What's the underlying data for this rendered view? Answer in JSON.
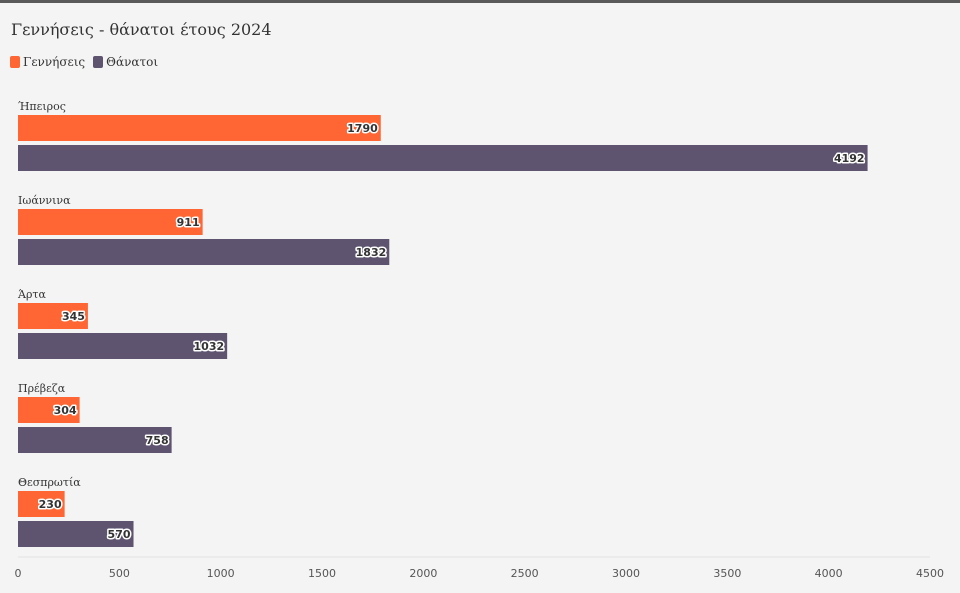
{
  "colors": {
    "births": "#ff6633",
    "deaths": "#5f5470"
  },
  "chart_data": {
    "type": "bar",
    "orientation": "horizontal",
    "title": "Γεννήσεις - θάνατοι έτους 2024",
    "categories": [
      "Ήπειρος",
      "Ιωάννινα",
      "Άρτα",
      "Πρέβεζα",
      "Θεσπρωτία"
    ],
    "series": [
      {
        "name": "Γεννήσεις",
        "values": [
          1790,
          911,
          345,
          304,
          230
        ]
      },
      {
        "name": "Θάνατοι",
        "values": [
          4192,
          1832,
          1032,
          758,
          570
        ]
      }
    ],
    "xlim": [
      0,
      4500
    ],
    "xticks": [
      "0",
      "500",
      "1000",
      "1500",
      "2000",
      "2500",
      "3000",
      "3500",
      "4000",
      "4500"
    ],
    "legend_position": "top-left",
    "grid": false
  }
}
